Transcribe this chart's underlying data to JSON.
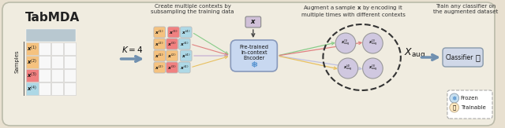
{
  "bg_color": "#f0ece0",
  "title_text": "TabMDA",
  "step1_text": "Create multiple contexts by\nsubsampling the training data",
  "step2_text": "Augment a sample $\\mathbf{x}$ by encoding it\nmultiple times with different contexts",
  "step3_text": "Train any classifier on\nthe augmented dataset",
  "grid_header_color": "#b8c8d0",
  "row_colors": [
    "#f5c27f",
    "#f5c27f",
    "#f08080",
    "#add8e6"
  ],
  "encoder_box_color": "#c8d8f0",
  "encoder_edge_color": "#8899bb",
  "x_box_color": "#d0c0d8",
  "x_box_edge": "#888888",
  "classifier_box_color": "#d0d8e8",
  "arrow_color_main": "#8899aa",
  "arrow_color_k": "#7090b0",
  "ctx_colors_row0": [
    "#f5c27f",
    "#f08080",
    "#add8e6"
  ],
  "ctx_colors_row1": [
    "#f5c27f",
    "#f08080",
    "#add8e6"
  ],
  "ctx_colors_row2": [
    "#f5c27f",
    "#f5c27f",
    "#add8e6"
  ],
  "ctx_colors_row3": [
    "#f5c27f",
    "#f08080",
    "#add8e6"
  ],
  "ctx_labels_row0": [
    "$\\boldsymbol{x}^{(1)}$",
    "$\\boldsymbol{x}^{(3)}$",
    "$\\boldsymbol{x}^{(4)}$"
  ],
  "ctx_labels_row1": [
    "$\\boldsymbol{x}^{(2)}$",
    "$\\boldsymbol{x}^{(3)}$",
    "$\\boldsymbol{x}^{(4)}$"
  ],
  "ctx_labels_row2": [
    "$\\boldsymbol{x}^{(1)}$",
    "$\\boldsymbol{x}^{(2)}$",
    "$\\boldsymbol{x}^{(4)}$"
  ],
  "ctx_labels_row3": [
    "$\\boldsymbol{x}^{(2)}$",
    "$\\boldsymbol{x}^{(3)}$",
    "$\\boldsymbol{x}^{(4)}$"
  ],
  "line_colors_ctx": [
    "#88cc88",
    "#e08080",
    "#c0a8d0",
    "#e8c060"
  ],
  "aug_node_color": "#d0c8e0",
  "aug_node_edge": "#999999",
  "aug_labels": [
    "$\\boldsymbol{x}_{\\mathrm{aug}}^{(1)}$",
    "$\\boldsymbol{x}_{\\mathrm{aug}}^{(2)}$",
    "$\\boldsymbol{x}_{\\mathrm{aug}}^{(3)}$",
    "$\\boldsymbol{x}_{\\mathrm{aug}}^{(4)}$"
  ],
  "node_line_colors": [
    "#88cc88",
    "#e08080",
    "#c0c0e0",
    "#e8c060"
  ],
  "text_color": "#222222",
  "k_text": "$K = 4$",
  "xaug_text": "$X_{\\mathrm{aug}}$",
  "outer_bg": "#e8e0d0"
}
